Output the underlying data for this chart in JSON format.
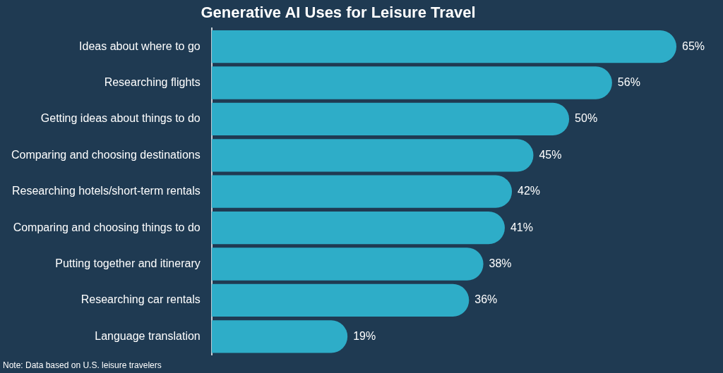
{
  "chart_data": {
    "type": "bar",
    "orientation": "horizontal",
    "title": "Generative AI Uses for Leisure Travel",
    "categories": [
      "Ideas about where to go",
      "Researching flights",
      "Getting ideas about things to do",
      "Comparing and choosing destinations",
      "Researching hotels/short-term rentals",
      "Comparing and choosing things to do",
      "Putting together and itinerary",
      "Researching car rentals",
      "Language translation"
    ],
    "values": [
      65,
      56,
      50,
      45,
      42,
      41,
      38,
      36,
      19
    ],
    "value_labels": [
      "65%",
      "56%",
      "50%",
      "45%",
      "42%",
      "41%",
      "38%",
      "36%",
      "19%"
    ],
    "color": "#2eadc8",
    "xlim": [
      0,
      65
    ],
    "tick_labels": "y",
    "legend": false,
    "annotations": [
      "Note: Data based on U.S. leisure travelers"
    ]
  }
}
